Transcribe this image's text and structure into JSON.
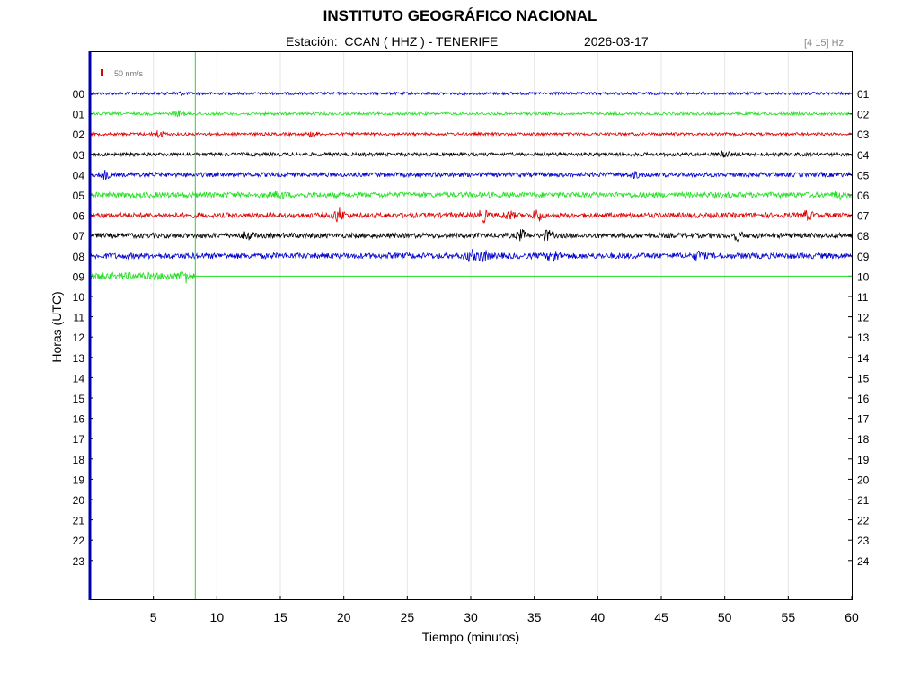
{
  "header": {
    "title": "INSTITUTO GEOGRÁFICO NACIONAL",
    "station": "Estación:  CCAN ( HHZ ) - TENERIFE",
    "date": "2026-03-17",
    "filter": "[4 15] Hz"
  },
  "chart_data": {
    "type": "line",
    "title": "INSTITUTO GEOGRÁFICO NACIONAL",
    "xlabel": "Tiempo (minutos)",
    "ylabel": "Horas (UTC)",
    "xlim": [
      0,
      60
    ],
    "x_ticks": [
      5,
      10,
      15,
      20,
      25,
      30,
      35,
      40,
      45,
      50,
      55,
      60
    ],
    "left_hour_labels": [
      "00",
      "01",
      "02",
      "03",
      "04",
      "05",
      "06",
      "07",
      "08",
      "09",
      "10",
      "11",
      "12",
      "13",
      "14",
      "15",
      "16",
      "17",
      "18",
      "19",
      "20",
      "21",
      "22",
      "23"
    ],
    "right_hour_labels": [
      "01",
      "02",
      "03",
      "04",
      "05",
      "06",
      "07",
      "08",
      "09",
      "10",
      "11",
      "12",
      "13",
      "14",
      "15",
      "16",
      "17",
      "18",
      "19",
      "20",
      "21",
      "22",
      "23",
      "24"
    ],
    "scale_label": "50 nm/s",
    "scale_color": "#e00000",
    "current_time_minutes": 8.3,
    "current_time_color": "#22dd22",
    "grid": true,
    "series": [
      {
        "hour": "00",
        "color": "#0000cc",
        "end_minute": 60,
        "amplitude": 1.5,
        "events": [
          {
            "t": 7,
            "a": 1.5
          }
        ]
      },
      {
        "hour": "01",
        "color": "#22dd22",
        "end_minute": 60,
        "amplitude": 1.5,
        "events": [
          {
            "t": 7,
            "a": 3
          }
        ]
      },
      {
        "hour": "02",
        "color": "#dd0000",
        "end_minute": 60,
        "amplitude": 1.6,
        "events": [
          {
            "t": 5.4,
            "a": 4
          },
          {
            "t": 17.5,
            "a": 2.5
          }
        ]
      },
      {
        "hour": "03",
        "color": "#000000",
        "end_minute": 60,
        "amplitude": 2,
        "events": [
          {
            "t": 50,
            "a": 2.5
          }
        ]
      },
      {
        "hour": "04",
        "color": "#0000cc",
        "end_minute": 60,
        "amplitude": 2.5,
        "events": [
          {
            "t": 1.2,
            "a": 4
          },
          {
            "t": 43,
            "a": 2.5
          }
        ]
      },
      {
        "hour": "05",
        "color": "#22dd22",
        "end_minute": 60,
        "amplitude": 3,
        "events": [
          {
            "t": 15,
            "a": 3
          },
          {
            "t": 59,
            "a": 3
          }
        ]
      },
      {
        "hour": "06",
        "color": "#dd0000",
        "end_minute": 60,
        "amplitude": 2.8,
        "events": [
          {
            "t": 19.6,
            "a": 8
          },
          {
            "t": 31,
            "a": 6
          },
          {
            "t": 33,
            "a": 4
          },
          {
            "t": 35.3,
            "a": 6
          },
          {
            "t": 56.5,
            "a": 4
          }
        ]
      },
      {
        "hour": "07",
        "color": "#000000",
        "end_minute": 60,
        "amplitude": 2.8,
        "events": [
          {
            "t": 12.5,
            "a": 4
          },
          {
            "t": 34,
            "a": 5
          },
          {
            "t": 36,
            "a": 5
          },
          {
            "t": 51,
            "a": 4
          }
        ]
      },
      {
        "hour": "08",
        "color": "#0000cc",
        "end_minute": 60,
        "amplitude": 3.2,
        "events": [
          {
            "t": 30,
            "a": 5
          },
          {
            "t": 31,
            "a": 5
          },
          {
            "t": 36.5,
            "a": 6
          },
          {
            "t": 48,
            "a": 4
          }
        ]
      },
      {
        "hour": "09",
        "color": "#22dd22",
        "end_minute": 8.3,
        "amplitude": 4,
        "events": [
          {
            "t": 7.5,
            "a": 5
          }
        ]
      }
    ]
  }
}
